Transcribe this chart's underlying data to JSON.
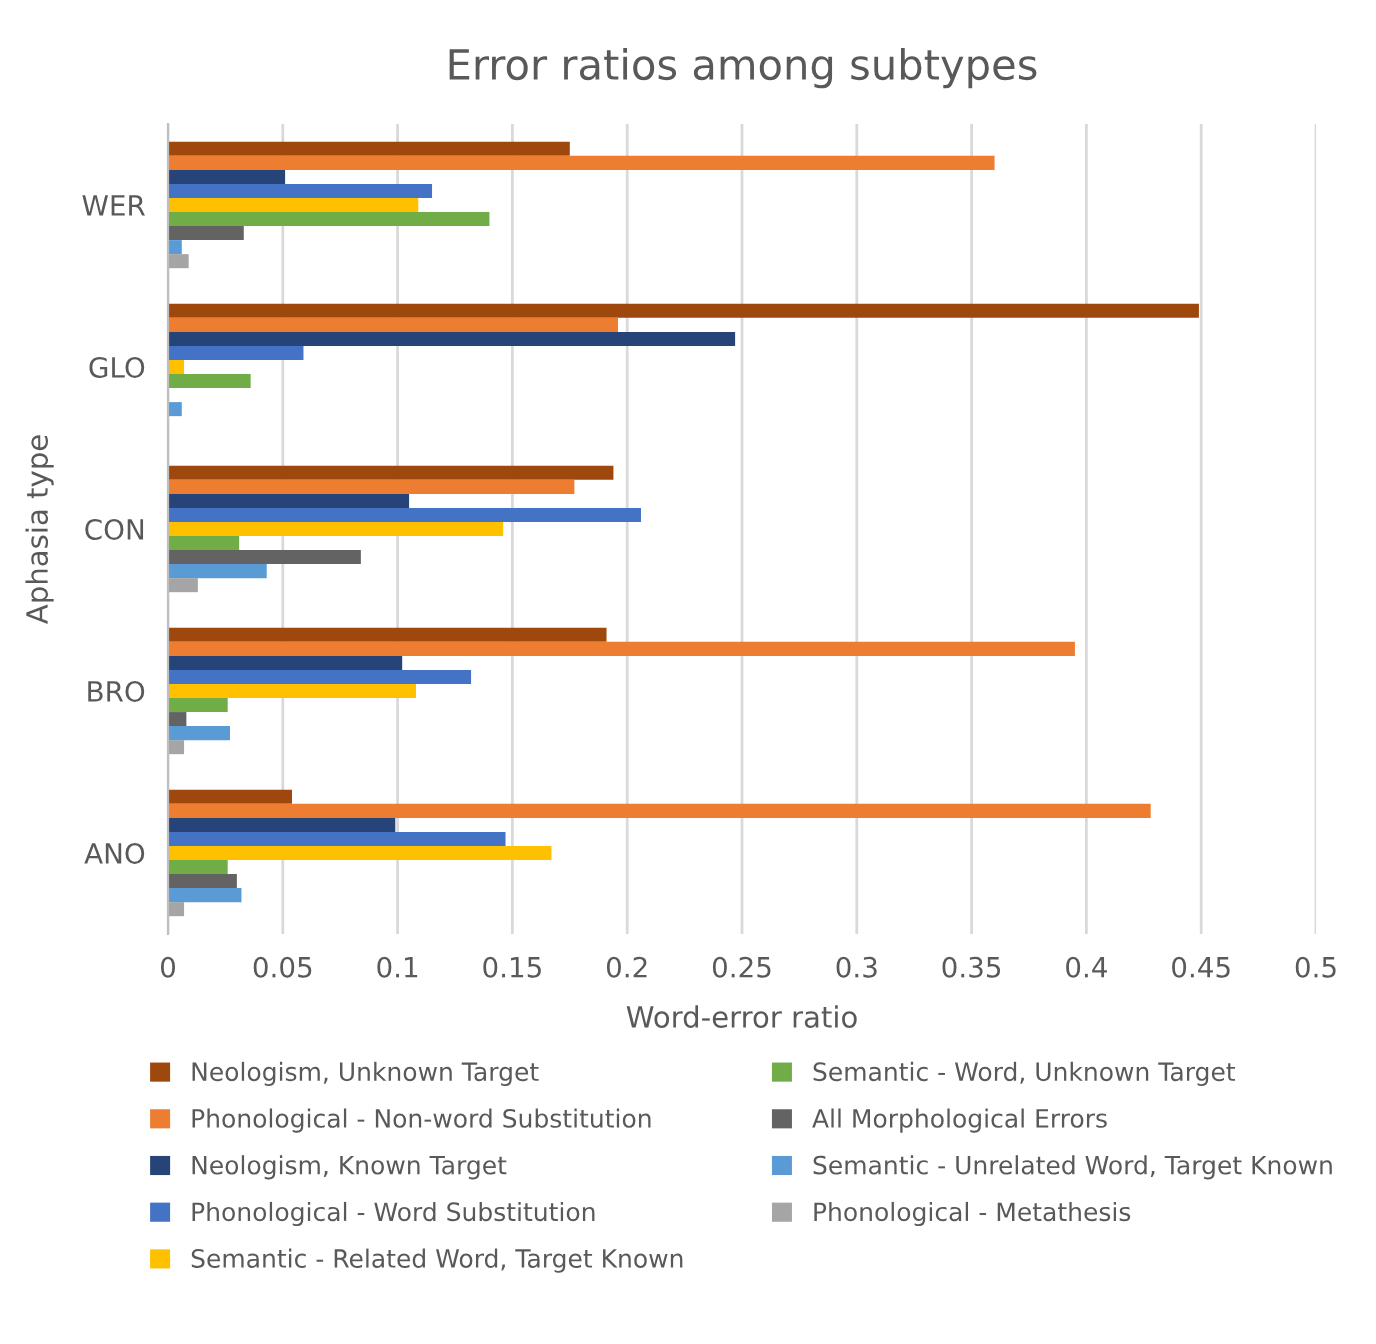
{
  "chart_data": {
    "type": "bar",
    "orientation": "horizontal",
    "title": "Error ratios among subtypes",
    "xlabel": "Word-error ratio",
    "ylabel": "Aphasia type",
    "categories": [
      "WER",
      "GLO",
      "CON",
      "BRO",
      "ANO"
    ],
    "series": [
      {
        "name": "Neologism, Unknown Target",
        "color": "#9e480e",
        "values": [
          0.175,
          0.449,
          0.194,
          0.191,
          0.054
        ]
      },
      {
        "name": "Phonological - Non-word Substitution",
        "color": "#ed7d31",
        "values": [
          0.36,
          0.196,
          0.177,
          0.395,
          0.428
        ]
      },
      {
        "name": "Neologism, Known Target",
        "color": "#264478",
        "values": [
          0.051,
          0.247,
          0.105,
          0.102,
          0.099
        ]
      },
      {
        "name": "Phonological - Word Substitution",
        "color": "#4472c4",
        "values": [
          0.115,
          0.059,
          0.206,
          0.132,
          0.147
        ]
      },
      {
        "name": "Semantic - Related Word, Target Known",
        "color": "#ffc000",
        "values": [
          0.109,
          0.007,
          0.146,
          0.108,
          0.167
        ]
      },
      {
        "name": "Semantic - Word, Unknown Target",
        "color": "#70ad47",
        "values": [
          0.14,
          0.036,
          0.031,
          0.026,
          0.026
        ]
      },
      {
        "name": "All Morphological Errors",
        "color": "#636363",
        "values": [
          0.033,
          0,
          0.084,
          0.008,
          0.03
        ]
      },
      {
        "name": "Semantic - Unrelated Word, Target Known",
        "color": "#5b9bd5",
        "values": [
          0.006,
          0.006,
          0.043,
          0.027,
          0.032
        ]
      },
      {
        "name": "Phonological - Metathesis",
        "color": "#a5a5a5",
        "values": [
          0.009,
          0,
          0.013,
          0.007,
          0.007
        ]
      }
    ],
    "xlim": [
      0,
      0.5
    ],
    "xticks": [
      0,
      0.05,
      0.1,
      0.15,
      0.2,
      0.25,
      0.3,
      0.35,
      0.4,
      0.45,
      0.5
    ],
    "grid": "x",
    "legend": "bottom"
  }
}
